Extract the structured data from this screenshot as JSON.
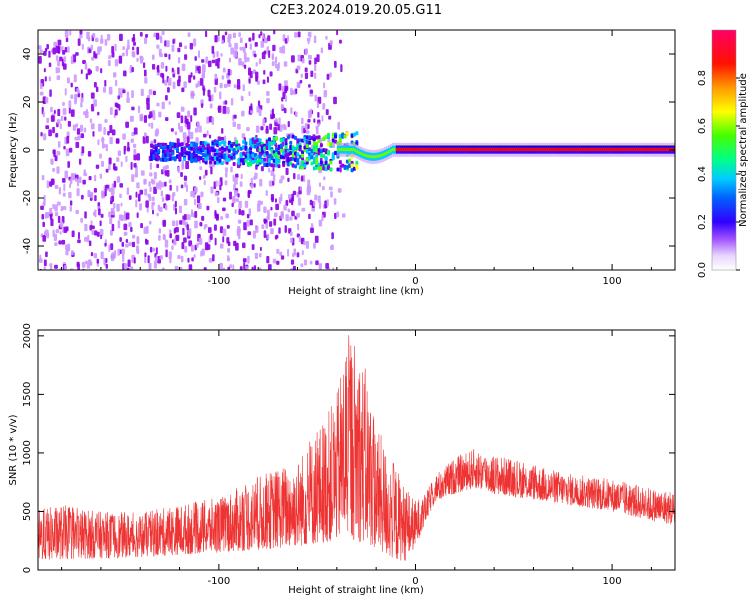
{
  "title": "C2E3.2024.019.20.05.G11",
  "chart_data": [
    {
      "type": "heatmap",
      "xlabel": "Height of straight line (km)",
      "ylabel": "Frequency (Hz)",
      "xlim": [
        -192,
        132
      ],
      "ylim": [
        -50,
        50
      ],
      "x_ticks": [
        -100,
        0,
        100
      ],
      "y_ticks": [
        -40,
        -20,
        0,
        20,
        40
      ],
      "x_tick_labels": [
        "-100",
        "0",
        "100"
      ],
      "y_tick_labels": [
        "-40",
        "-20",
        "0",
        "20",
        "40"
      ],
      "colorbar": {
        "label": "Normalized spectral amplitude",
        "range": [
          0.0,
          1.0
        ],
        "ticks": [
          0.0,
          0.2,
          0.4,
          0.6,
          0.8
        ],
        "tick_labels": [
          "0.0",
          "0.2",
          "0.4",
          "0.6",
          "0.8"
        ],
        "colormap": [
          "#ffffff",
          "#cc99ff",
          "#8a00e6",
          "#3300ff",
          "#0066ff",
          "#00ccff",
          "#00ff66",
          "#66ff00",
          "#ffff00",
          "#ff8800",
          "#ff0000",
          "#ff0066"
        ]
      },
      "features": {
        "carrier_line_freq": 0,
        "noise_region_x": [
          -192,
          -55
        ],
        "turbulent_region_x": [
          -135,
          -30
        ],
        "stable_tone_start_x": -10,
        "tone_dip_x": [
          -32,
          -12
        ],
        "tone_dip_freq": -3
      },
      "grid": false
    },
    {
      "type": "line",
      "xlabel": "Height of straight line (km)",
      "ylabel": "SNR (10 * v/v)",
      "xlim": [
        -192,
        132
      ],
      "ylim": [
        0,
        2050
      ],
      "x_ticks": [
        -100,
        0,
        100
      ],
      "y_ticks": [
        0,
        500,
        1000,
        1500,
        2000
      ],
      "x_tick_labels": [
        "-100",
        "0",
        "100"
      ],
      "y_tick_labels": [
        "0",
        "500",
        "1000",
        "1500",
        "2000"
      ],
      "series": [
        {
          "color": "#ee3333",
          "envelope": {
            "x": [
              -192,
              -180,
              -160,
              -140,
              -120,
              -100,
              -80,
              -60,
              -50,
              -40,
              -35,
              -30,
              -25,
              -20,
              -15,
              -10,
              -5,
              0,
              5,
              10,
              20,
              30,
              40,
              60,
              80,
              100,
              120,
              132
            ],
            "max": [
              520,
              560,
              500,
              490,
              560,
              620,
              800,
              950,
              1200,
              1500,
              2040,
              1980,
              1700,
              1250,
              1050,
              900,
              700,
              600,
              650,
              820,
              960,
              1040,
              990,
              900,
              820,
              780,
              700,
              680
            ],
            "min": [
              80,
              90,
              100,
              110,
              130,
              150,
              170,
              200,
              220,
              250,
              280,
              250,
              220,
              180,
              120,
              80,
              80,
              200,
              400,
              580,
              650,
              700,
              650,
              600,
              550,
              500,
              420,
              380
            ]
          }
        }
      ],
      "grid": false
    }
  ]
}
